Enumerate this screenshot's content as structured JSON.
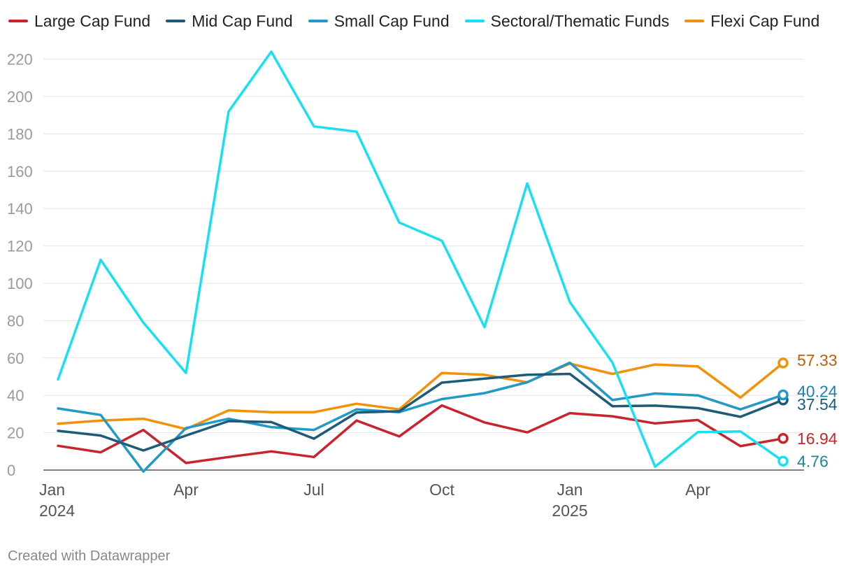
{
  "chart_data": {
    "type": "line",
    "x": [
      "Jan 2024",
      "Feb 2024",
      "Mar 2024",
      "Apr 2024",
      "May 2024",
      "Jun 2024",
      "Jul 2024",
      "Aug 2024",
      "Sep 2024",
      "Oct 2024",
      "Nov 2024",
      "Dec 2024",
      "Jan 2025",
      "Feb 2025",
      "Mar 2025",
      "Apr 2025",
      "May 2025",
      "Jun 2025"
    ],
    "x_ticks": [
      {
        "index": 0,
        "label": "Jan",
        "sub": "2024"
      },
      {
        "index": 3,
        "label": "Apr",
        "sub": ""
      },
      {
        "index": 6,
        "label": "Jul",
        "sub": ""
      },
      {
        "index": 9,
        "label": "Oct",
        "sub": ""
      },
      {
        "index": 12,
        "label": "Jan",
        "sub": "2025"
      },
      {
        "index": 15,
        "label": "Apr",
        "sub": ""
      }
    ],
    "y_ticks": [
      0,
      20,
      40,
      60,
      80,
      100,
      120,
      140,
      160,
      180,
      200,
      220
    ],
    "ylim": [
      0,
      225
    ],
    "grid": true,
    "series": [
      {
        "name": "Large Cap Fund",
        "color": "#c8242b",
        "label_color": "#c8242b",
        "end_label": "16.94",
        "values": [
          13,
          9.5,
          21.5,
          3.8,
          7,
          10,
          7,
          26.5,
          18,
          34.6,
          25.5,
          20.2,
          30.5,
          28.8,
          25,
          26.8,
          12.8,
          16.94
        ]
      },
      {
        "name": "Mid Cap Fund",
        "color": "#1d5b79",
        "label_color": "#1d5b79",
        "end_label": "37.54",
        "values": [
          21,
          18.5,
          10.5,
          18.5,
          26.2,
          25.7,
          16.8,
          30.8,
          31.5,
          46.8,
          49,
          51,
          51.5,
          34.2,
          34.5,
          33.2,
          28.5,
          37.54
        ]
      },
      {
        "name": "Small Cap Fund",
        "color": "#2399c7",
        "label_color": "#1e7fb4",
        "end_label": "40.24",
        "values": [
          33,
          29.5,
          -0.8,
          22.5,
          27.5,
          23,
          21.5,
          32.5,
          31,
          38,
          41.2,
          47,
          57.5,
          37.5,
          41,
          40,
          32.5,
          40.24
        ]
      },
      {
        "name": "Sectoral/Thematic Funds",
        "color": "#19e0f0",
        "label_color": "#168a94",
        "end_label": "4.76",
        "values": [
          48.5,
          112.6,
          79,
          52,
          192,
          224,
          184,
          181.2,
          132.5,
          122.8,
          76.5,
          153.5,
          90,
          57.5,
          1.8,
          20.3,
          20.7,
          4.76
        ]
      },
      {
        "name": "Flexi Cap Fund",
        "color": "#f2910a",
        "label_color": "#b8620a",
        "end_label": "57.33",
        "values": [
          24.8,
          26.5,
          27.5,
          22,
          32,
          31,
          31,
          35.5,
          32.5,
          52,
          51,
          47,
          57,
          51.5,
          56.5,
          55.5,
          38.8,
          57.33
        ]
      }
    ]
  },
  "footer": "Created with Datawrapper"
}
